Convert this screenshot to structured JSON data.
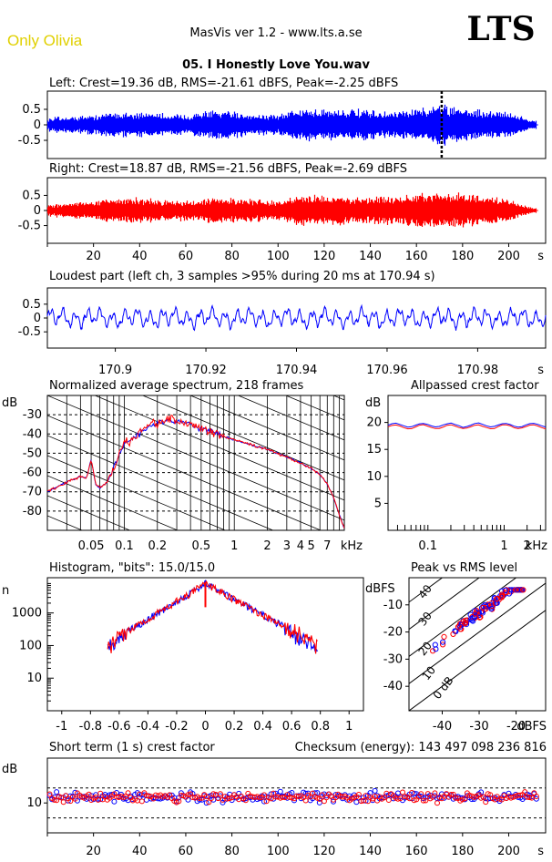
{
  "header": {
    "artist": "Only Olivia",
    "app": "MasVis ver 1.2 - www.lts.a.se",
    "logo": "LTS",
    "track": "05. I Honestly Love You.wav"
  },
  "colors": {
    "left": "#0000ff",
    "right": "#ff0000"
  },
  "chart_data": [
    {
      "type": "line",
      "id": "left",
      "title": "Left: Crest=19.36 dB, RMS=-21.61 dBFS, Peak=-2.25 dBFS",
      "ylim": [
        -1,
        1
      ],
      "yticks": [
        "0.5",
        "0",
        "-0.5"
      ],
      "xlim": [
        0,
        216
      ],
      "marker_x": 170.94,
      "envelope": {
        "x": [
          0,
          10,
          20,
          30,
          40,
          50,
          60,
          70,
          80,
          90,
          100,
          110,
          120,
          130,
          140,
          150,
          160,
          170,
          180,
          190,
          200,
          210
        ],
        "amp": [
          0.25,
          0.3,
          0.35,
          0.45,
          0.45,
          0.4,
          0.35,
          0.5,
          0.45,
          0.4,
          0.35,
          0.6,
          0.55,
          0.55,
          0.5,
          0.45,
          0.55,
          0.75,
          0.6,
          0.5,
          0.45,
          0.15
        ]
      }
    },
    {
      "type": "line",
      "id": "right",
      "title": "Right: Crest=18.87 dB, RMS=-21.56 dBFS, Peak=-2.69 dBFS",
      "ylim": [
        -1,
        1
      ],
      "yticks": [
        "0.5",
        "0",
        "-0.5"
      ],
      "xlim": [
        0,
        216
      ],
      "xticks": [
        "20",
        "40",
        "60",
        "80",
        "100",
        "120",
        "140",
        "160",
        "180",
        "200"
      ],
      "xunit": "s",
      "envelope": {
        "x": [
          0,
          10,
          20,
          30,
          40,
          50,
          60,
          70,
          80,
          90,
          100,
          110,
          120,
          130,
          140,
          150,
          160,
          170,
          180,
          190,
          200,
          210
        ],
        "amp": [
          0.2,
          0.3,
          0.35,
          0.45,
          0.45,
          0.4,
          0.35,
          0.45,
          0.45,
          0.4,
          0.35,
          0.55,
          0.55,
          0.5,
          0.5,
          0.5,
          0.6,
          0.7,
          0.6,
          0.5,
          0.4,
          0.1
        ]
      }
    },
    {
      "type": "line",
      "id": "loudest",
      "title": "Loudest part (left  ch, 3 samples >95% during 20 ms at 170.94 s)",
      "ylim": [
        -1,
        1
      ],
      "yticks": [
        "0.5",
        "0",
        "-0.5"
      ],
      "xlim": [
        170.885,
        170.995
      ],
      "xticks": [
        "170.9",
        "170.92",
        "170.94",
        "170.96",
        "170.98"
      ],
      "xunit": "s"
    },
    {
      "type": "line",
      "id": "spectrum",
      "title": "Normalized average spectrum, 218 frames",
      "ylabel": "dB",
      "yticks": [
        "-30",
        "-40",
        "-50",
        "-60",
        "-70",
        "-80"
      ],
      "ylim": [
        -90,
        -20
      ],
      "xscale": "log",
      "xlim_khz": [
        0.02,
        10
      ],
      "xticks": [
        "0.05",
        "0.1",
        "0.2",
        "0.5",
        "1",
        "2",
        "3",
        "4",
        "5",
        "7"
      ],
      "xunit": "kHz",
      "shape": {
        "f": [
          0.02,
          0.03,
          0.04,
          0.05,
          0.06,
          0.07,
          0.08,
          0.1,
          0.12,
          0.15,
          0.2,
          0.3,
          0.4,
          0.5,
          0.7,
          1,
          1.5,
          2,
          3,
          4,
          5,
          6,
          7,
          8,
          9,
          10
        ],
        "db": [
          -70,
          -65,
          -62,
          -64,
          -68,
          -65,
          -58,
          -45,
          -42,
          -38,
          -34,
          -33,
          -35,
          -37,
          -40,
          -43,
          -46,
          -48,
          -52,
          -55,
          -58,
          -61,
          -66,
          -73,
          -82,
          -89
        ]
      }
    },
    {
      "type": "line",
      "id": "allpass",
      "title": "Allpassed crest factor",
      "ylabel": "dB",
      "yticks": [
        "20",
        "15",
        "10",
        "5"
      ],
      "ylim": [
        0,
        25
      ],
      "xscale": "log",
      "xticks": [
        "0.1",
        "1",
        "2"
      ],
      "xunit": "kHz",
      "left_db": 19.5,
      "right_db": 19.2
    },
    {
      "type": "line",
      "id": "histogram",
      "title": "Histogram, \"bits\": 15.0/15.0",
      "ylabel": "n",
      "yscale": "log",
      "yticks": [
        "1000",
        "100",
        "10"
      ],
      "xlim": [
        -1.1,
        1.1
      ],
      "xticks": [
        "-1",
        "-0.8",
        "-0.6",
        "-0.4",
        "-0.2",
        "0",
        "0.2",
        "0.4",
        "0.6",
        "0.8",
        "1"
      ],
      "peak_count": 8000,
      "range": [
        -0.68,
        0.78
      ]
    },
    {
      "type": "scatter",
      "id": "peakrms",
      "title": "Peak vs RMS level",
      "ylabel": "dBFS",
      "yticks": [
        "-10",
        "-20",
        "-30",
        "-40"
      ],
      "ylim": [
        -49,
        0
      ],
      "xlabel": "dBFS",
      "xticks": [
        "-40",
        "-30",
        "-20"
      ],
      "xlim": [
        -49,
        -12
      ],
      "diag_labels": [
        "40",
        "30",
        "20",
        "10",
        "0 dB"
      ]
    },
    {
      "type": "scatter",
      "id": "shortcrest",
      "title": "Short term (1 s) crest factor",
      "checksum": "Checksum (energy):   143 497 098 236 816",
      "ylabel": "dB",
      "yticks": [
        "10"
      ],
      "ylim": [
        0,
        25
      ],
      "xlim": [
        0,
        216
      ],
      "xticks": [
        "20",
        "40",
        "60",
        "80",
        "100",
        "120",
        "140",
        "160",
        "180",
        "200"
      ],
      "xunit": "s",
      "dashed_lines": [
        15,
        5
      ],
      "mean_db": 12
    }
  ]
}
